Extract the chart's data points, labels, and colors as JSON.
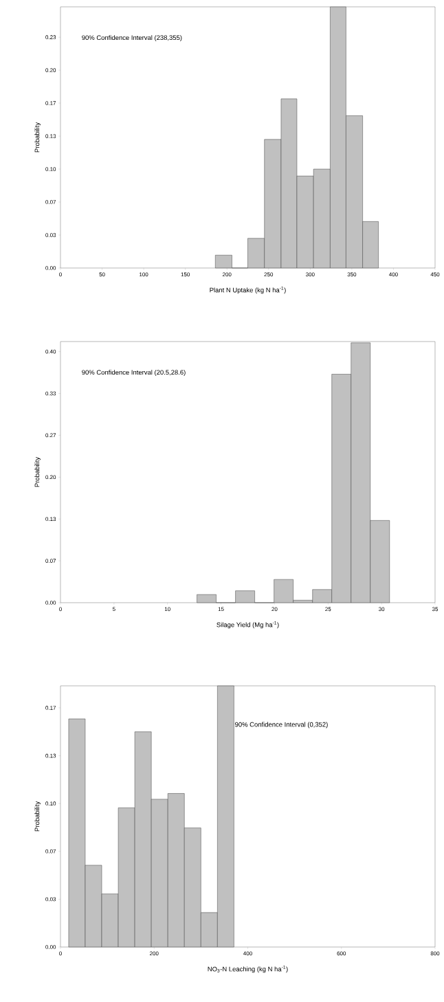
{
  "chart_data": [
    {
      "type": "histogram",
      "xlabel": "Plant N Uptake (kg N ha$^{-1}$)",
      "ylabel": "Probability",
      "annotations": [
        "90% Confidence Interval (238,355)"
      ],
      "color": "#c0c0c0",
      "bins": [
        186,
        206,
        225,
        245,
        265,
        284,
        304,
        324,
        343,
        363,
        382
      ],
      "values": [
        0.013,
        0,
        0.03,
        0.13,
        0.171,
        0.093,
        0.1,
        0.264,
        0.154,
        0.047
      ],
      "xlim": [
        0,
        450
      ],
      "xticks": [
        0,
        50,
        100,
        150,
        200,
        250,
        300,
        350,
        400,
        450
      ],
      "ylim": [
        0,
        0.264
      ],
      "yticks": [
        {
          "value": 0,
          "label": "0.00"
        },
        {
          "value": 0.0333,
          "label": "0.03"
        },
        {
          "value": 0.0667,
          "label": "0.07"
        },
        {
          "value": 0.1,
          "label": "0.10"
        },
        {
          "value": 0.1333,
          "label": "0.13"
        },
        {
          "value": 0.1667,
          "label": "0.17"
        },
        {
          "value": 0.2,
          "label": "0.20"
        },
        {
          "value": 0.2333,
          "label": "0.23"
        }
      ]
    },
    {
      "type": "histogram",
      "xlabel": "Silage Yield (Mg ha$^{-1}$)",
      "ylabel": "Probability",
      "annotations": [
        "90% Confidence Interval (20.5,28.6)"
      ],
      "color": "#c0c0c0",
      "bins": [
        12.75,
        14.55,
        16.35,
        18.15,
        19.95,
        21.75,
        23.55,
        25.35,
        27.15,
        28.95,
        30.75
      ],
      "values": [
        0.013,
        0,
        0.019,
        0,
        0.037,
        0.004,
        0.021,
        0.364,
        0.414,
        0.131
      ],
      "xlim": [
        0,
        35
      ],
      "xticks": [
        0,
        5,
        10,
        15,
        20,
        25,
        30,
        35
      ],
      "ylim": [
        0,
        0.416
      ],
      "yticks": [
        {
          "value": 0,
          "label": "0.00"
        },
        {
          "value": 0.0667,
          "label": "0.07"
        },
        {
          "value": 0.1333,
          "label": "0.13"
        },
        {
          "value": 0.2,
          "label": "0.20"
        },
        {
          "value": 0.2667,
          "label": "0.27"
        },
        {
          "value": 0.3333,
          "label": "0.33"
        },
        {
          "value": 0.4,
          "label": "0.40"
        }
      ]
    },
    {
      "type": "histogram",
      "xlabel": "NO$_{3}$-N Leaching (kg N ha$^{-1}$)",
      "ylabel": "Probability",
      "annotations": [
        "90% Confidence Interval (0,352)"
      ],
      "color": "#c0c0c0",
      "bins": [
        17.5,
        52.8,
        88.1,
        123.4,
        158.7,
        194,
        229.3,
        264.6,
        299.9,
        335.2,
        370.5
      ],
      "values": [
        0.159,
        0.057,
        0.037,
        0.097,
        0.15,
        0.103,
        0.107,
        0.083,
        0.024,
        0.182
      ],
      "xlim": [
        0,
        800
      ],
      "xticks": [
        0,
        200,
        400,
        600,
        800
      ],
      "ylim": [
        0,
        0.182
      ],
      "yticks": [
        {
          "value": 0,
          "label": "0.00"
        },
        {
          "value": 0.0333,
          "label": "0.03"
        },
        {
          "value": 0.0667,
          "label": "0.07"
        },
        {
          "value": 0.1,
          "label": "0.10"
        },
        {
          "value": 0.1333,
          "label": "0.13"
        },
        {
          "value": 0.1667,
          "label": "0.17"
        }
      ]
    }
  ]
}
